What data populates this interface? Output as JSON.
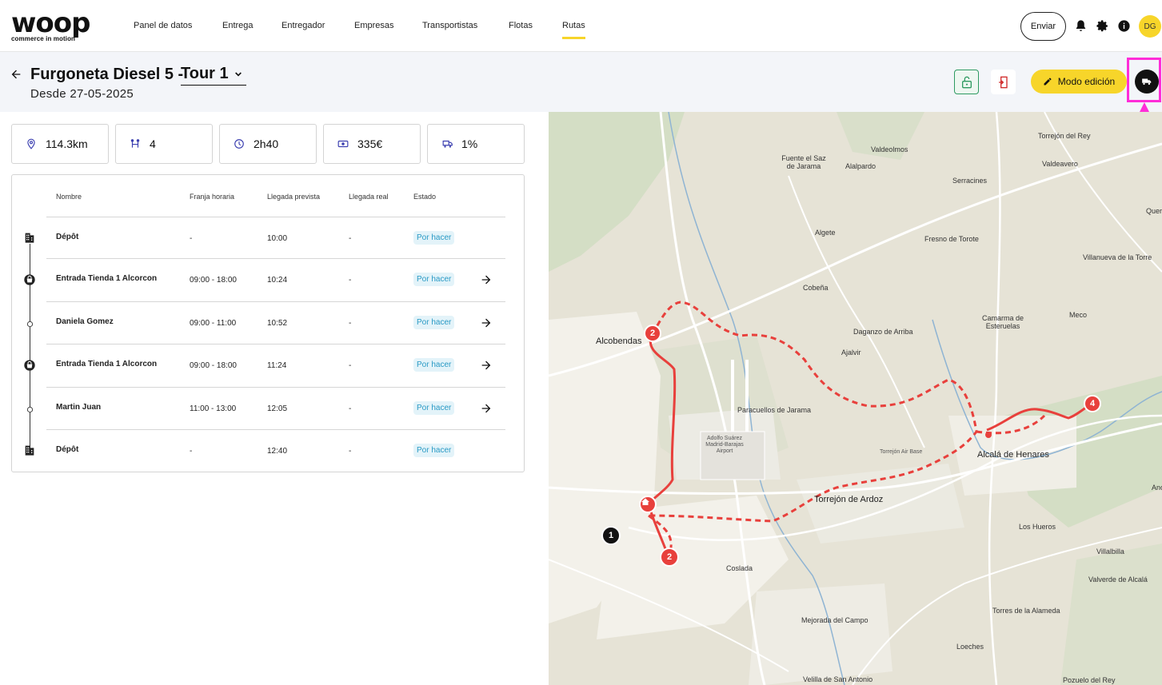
{
  "header": {
    "logo_word": "woop",
    "logo_tagline": "commerce in motion",
    "nav": [
      {
        "label": "Panel de datos",
        "active": false
      },
      {
        "label": "Entrega",
        "active": false
      },
      {
        "label": "Entregador",
        "active": false
      },
      {
        "label": "Empresas",
        "active": false
      },
      {
        "label": "Transportistas",
        "active": false
      },
      {
        "label": "Flotas",
        "active": false
      },
      {
        "label": "Rutas",
        "active": true
      }
    ],
    "send_label": "Enviar",
    "avatar_initials": "DG",
    "icons": [
      "bell-icon",
      "gear-icon",
      "info-icon"
    ]
  },
  "route": {
    "title": "Furgoneta Diesel 5 -",
    "tour_label": "Tour 1",
    "since": "Desde 27-05-2025",
    "edit_label": "Modo edición",
    "accent_color": "#f7d52a",
    "highlight_color": "#ff2dd8"
  },
  "stats": [
    {
      "icon": "pin-icon",
      "value": "114.3km"
    },
    {
      "icon": "stops-icon",
      "value": "4"
    },
    {
      "icon": "clock-icon",
      "value": "2h40"
    },
    {
      "icon": "money-icon",
      "value": "335€"
    },
    {
      "icon": "truck-load-icon",
      "value": "1%"
    }
  ],
  "table": {
    "headers": [
      "Nombre",
      "Franja horaria",
      "Llegada prevista",
      "Llegada real",
      "Estado"
    ],
    "rows": [
      {
        "icon": "building-icon",
        "name": "Dépôt",
        "window": "-",
        "eta": "10:00",
        "actual": "-",
        "status": "Por hacer",
        "arrow": false
      },
      {
        "icon": "store-icon",
        "name": "Entrada Tienda 1 Alcorcon",
        "window": "09:00 - 18:00",
        "eta": "10:24",
        "actual": "-",
        "status": "Por hacer",
        "arrow": true
      },
      {
        "icon": "dot-icon",
        "name": "Daniela Gomez",
        "window": "09:00 - 11:00",
        "eta": "10:52",
        "actual": "-",
        "status": "Por hacer",
        "arrow": true
      },
      {
        "icon": "store-icon",
        "name": "Entrada Tienda 1 Alcorcon",
        "window": "09:00 - 18:00",
        "eta": "11:24",
        "actual": "-",
        "status": "Por hacer",
        "arrow": true
      },
      {
        "icon": "dot-icon",
        "name": "Martin Juan",
        "window": "11:00 - 13:00",
        "eta": "12:05",
        "actual": "-",
        "status": "Por hacer",
        "arrow": true
      },
      {
        "icon": "building-icon",
        "name": "Dépôt",
        "window": "-",
        "eta": "12:40",
        "actual": "-",
        "status": "Por hacer",
        "arrow": false
      }
    ]
  },
  "map": {
    "labels": [
      "Torrejón del Rey",
      "Valdeolmos",
      "Fuente el Saz de Jarama",
      "Alalpardo",
      "Valdeavero",
      "Serracines",
      "Algete",
      "Fresno de Torote",
      "Villanueva de la Torre",
      "Cobeña",
      "Alcobendas",
      "Camarma de Esteruelas",
      "Meco",
      "Daganzo de Arriba",
      "Ajalvir",
      "Paracuellos de Jarama",
      "Adolfo Suárez Madrid-Barajas Airport",
      "Torrejón Air Base",
      "Alcalá de Henares",
      "Torrejón de Ardoz",
      "Los Hueros",
      "Villalbilla",
      "Coslada",
      "Valverde de Alcalá",
      "Torres de la Alameda",
      "Mejorada del Campo",
      "Loeches",
      "Velilla de San Antonio",
      "Pozuelo del Rey",
      "Quer",
      "Anc"
    ],
    "markers": [
      "2",
      "4",
      "1",
      "2"
    ],
    "route_color": "#e8403c"
  }
}
